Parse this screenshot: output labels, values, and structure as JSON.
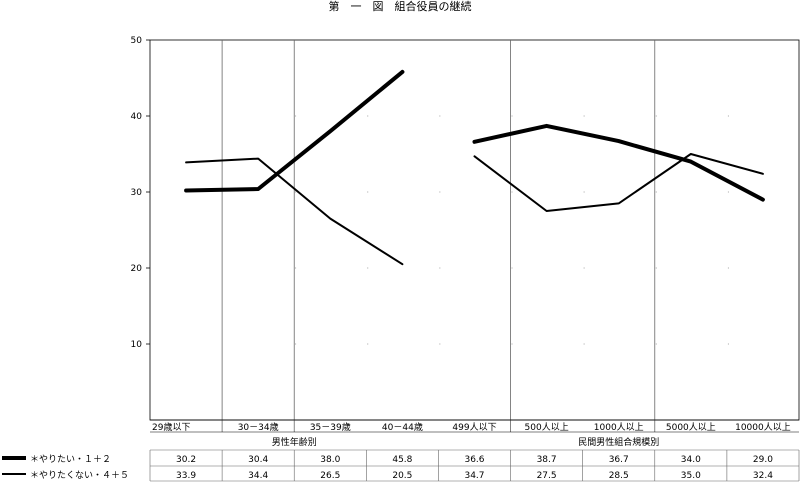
{
  "chart_data": {
    "type": "line",
    "title": "第　一　図　組合役員の継続",
    "ylim": [
      0,
      50
    ],
    "yticks": [
      "10",
      "20",
      "30",
      "40",
      "50"
    ],
    "categories": [
      "29歳以下",
      "30－34歳",
      "35－39歳",
      "40－44歳",
      "499人以下",
      "500人以上",
      "1000人以上",
      "5000人以上",
      "10000人以上"
    ],
    "groups": [
      {
        "label": "男性年齢別",
        "span": [
          0,
          3
        ]
      },
      {
        "label": "民間男性組合規模別",
        "span": [
          4,
          8
        ]
      }
    ],
    "series": [
      {
        "name": "＊やりたい・１＋２",
        "values": [
          30.2,
          30.4,
          38.0,
          45.8,
          36.6,
          38.7,
          36.7,
          34.0,
          29.0
        ],
        "labels": [
          "30.2",
          "30.4",
          "38.0",
          "45.8",
          "36.6",
          "38.7",
          "36.7",
          "34.0",
          "29.0"
        ]
      },
      {
        "name": "＊やりたくない・４＋５",
        "values": [
          33.9,
          34.4,
          26.5,
          20.5,
          34.7,
          27.5,
          28.5,
          35.0,
          32.4
        ],
        "labels": [
          "33.9",
          "34.4",
          "26.5",
          "20.5",
          "34.7",
          "27.5",
          "28.5",
          "35.0",
          "32.4"
        ]
      }
    ],
    "legend": "table-left",
    "grid": false
  }
}
